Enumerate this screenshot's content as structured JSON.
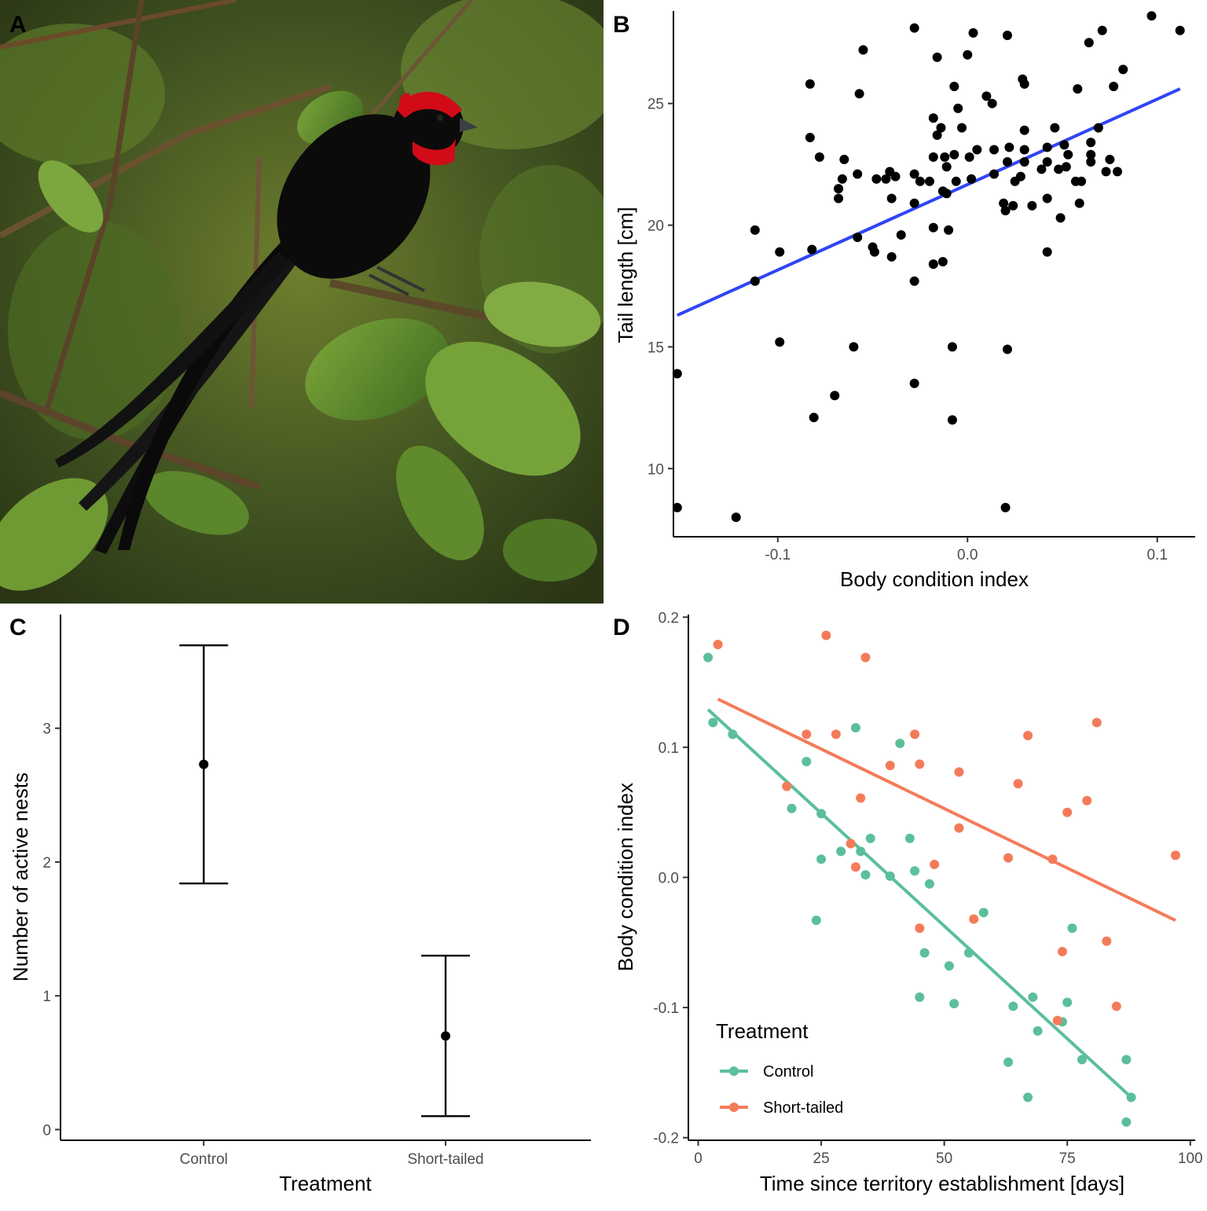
{
  "panel_labels": [
    "A",
    "B",
    "C",
    "D"
  ],
  "colors": {
    "fit_line_b": "#2e45f5",
    "control": "#5bbf9a",
    "short_tailed": "#f47b5a",
    "points": "#000000",
    "axis": "#000000"
  },
  "photo": {
    "icon": "bird-photo-icon",
    "bird_body": "#0b0b0b",
    "bird_mask": "#d10b18",
    "foliage": "#5d8a2c",
    "background": "#3e4a20"
  },
  "chart_data": [
    {
      "panel": "B",
      "type": "scatter",
      "xlabel": "Body condition index",
      "ylabel": "Tail length [cm]",
      "xlim": [
        -0.155,
        0.12
      ],
      "ylim": [
        7.2,
        28.8
      ],
      "xticks": [
        -0.1,
        0.0,
        0.1
      ],
      "xtick_labels": [
        "-0.1",
        "0.0",
        "0.1"
      ],
      "yticks": [
        10,
        15,
        20,
        25
      ],
      "ytick_labels": [
        "10",
        "15",
        "20",
        "25"
      ],
      "grid": false,
      "fit_line": {
        "x": [
          -0.153,
          0.112
        ],
        "y": [
          16.3,
          25.6
        ]
      },
      "points": [
        [
          -0.153,
          13.9
        ],
        [
          -0.153,
          8.4
        ],
        [
          -0.122,
          8.0
        ],
        [
          -0.112,
          19.8
        ],
        [
          -0.112,
          17.7
        ],
        [
          -0.099,
          18.9
        ],
        [
          -0.099,
          15.2
        ],
        [
          -0.083,
          25.8
        ],
        [
          -0.083,
          23.6
        ],
        [
          -0.082,
          19.0
        ],
        [
          -0.081,
          12.1
        ],
        [
          -0.078,
          22.8
        ],
        [
          -0.07,
          13.0
        ],
        [
          -0.068,
          21.5
        ],
        [
          -0.068,
          21.1
        ],
        [
          -0.066,
          21.9
        ],
        [
          -0.065,
          22.7
        ],
        [
          -0.06,
          15.0
        ],
        [
          -0.058,
          22.1
        ],
        [
          -0.058,
          19.5
        ],
        [
          -0.057,
          25.4
        ],
        [
          -0.055,
          27.2
        ],
        [
          -0.05,
          19.1
        ],
        [
          -0.049,
          18.9
        ],
        [
          -0.048,
          21.9
        ],
        [
          -0.043,
          21.9
        ],
        [
          -0.041,
          22.2
        ],
        [
          -0.04,
          18.7
        ],
        [
          -0.04,
          21.1
        ],
        [
          -0.038,
          22.0
        ],
        [
          -0.035,
          19.6
        ],
        [
          -0.028,
          28.1
        ],
        [
          -0.028,
          22.1
        ],
        [
          -0.028,
          20.9
        ],
        [
          -0.028,
          17.7
        ],
        [
          -0.028,
          13.5
        ],
        [
          -0.025,
          21.8
        ],
        [
          -0.02,
          21.8
        ],
        [
          -0.018,
          24.4
        ],
        [
          -0.018,
          22.8
        ],
        [
          -0.018,
          19.9
        ],
        [
          -0.018,
          18.4
        ],
        [
          -0.016,
          26.9
        ],
        [
          -0.016,
          23.7
        ],
        [
          -0.014,
          24.0
        ],
        [
          -0.013,
          21.4
        ],
        [
          -0.013,
          18.5
        ],
        [
          -0.012,
          22.8
        ],
        [
          -0.011,
          22.4
        ],
        [
          -0.011,
          21.3
        ],
        [
          -0.01,
          19.8
        ],
        [
          -0.008,
          15.0
        ],
        [
          -0.008,
          12.0
        ],
        [
          -0.007,
          25.7
        ],
        [
          -0.007,
          22.9
        ],
        [
          -0.006,
          21.8
        ],
        [
          -0.005,
          24.8
        ],
        [
          -0.003,
          24.0
        ],
        [
          0.0,
          27.0
        ],
        [
          0.001,
          22.8
        ],
        [
          0.002,
          21.9
        ],
        [
          0.003,
          27.9
        ],
        [
          0.005,
          23.1
        ],
        [
          0.01,
          25.3
        ],
        [
          0.013,
          25.0
        ],
        [
          0.014,
          23.1
        ],
        [
          0.014,
          22.1
        ],
        [
          0.019,
          20.9
        ],
        [
          0.02,
          20.6
        ],
        [
          0.02,
          8.4
        ],
        [
          0.021,
          27.8
        ],
        [
          0.021,
          22.6
        ],
        [
          0.021,
          14.9
        ],
        [
          0.022,
          23.2
        ],
        [
          0.024,
          20.8
        ],
        [
          0.025,
          21.8
        ],
        [
          0.028,
          22.0
        ],
        [
          0.029,
          26.0
        ],
        [
          0.03,
          25.8
        ],
        [
          0.03,
          23.9
        ],
        [
          0.03,
          23.1
        ],
        [
          0.03,
          22.6
        ],
        [
          0.034,
          20.8
        ],
        [
          0.039,
          22.3
        ],
        [
          0.042,
          23.2
        ],
        [
          0.042,
          22.6
        ],
        [
          0.042,
          21.1
        ],
        [
          0.042,
          18.9
        ],
        [
          0.046,
          24.0
        ],
        [
          0.048,
          22.3
        ],
        [
          0.049,
          20.3
        ],
        [
          0.051,
          23.3
        ],
        [
          0.052,
          22.4
        ],
        [
          0.053,
          22.9
        ],
        [
          0.057,
          21.8
        ],
        [
          0.058,
          25.6
        ],
        [
          0.059,
          20.9
        ],
        [
          0.06,
          21.8
        ],
        [
          0.064,
          27.5
        ],
        [
          0.065,
          23.4
        ],
        [
          0.065,
          22.9
        ],
        [
          0.065,
          22.6
        ],
        [
          0.069,
          24.0
        ],
        [
          0.071,
          28.0
        ],
        [
          0.073,
          22.2
        ],
        [
          0.075,
          22.7
        ],
        [
          0.077,
          25.7
        ],
        [
          0.079,
          22.2
        ],
        [
          0.082,
          26.4
        ],
        [
          0.097,
          28.6
        ],
        [
          0.112,
          28.0
        ]
      ]
    },
    {
      "panel": "C",
      "type": "errorbar",
      "xlabel": "Treatment",
      "ylabel": "Number of active nests",
      "categories": [
        "Control",
        "Short-tailed"
      ],
      "ylim": [
        -0.08,
        3.85
      ],
      "yticks": [
        0,
        1,
        2,
        3
      ],
      "ytick_labels": [
        "0",
        "1",
        "2",
        "3"
      ],
      "grid": false,
      "means": [
        2.73,
        0.7
      ],
      "lower": [
        1.84,
        0.1
      ],
      "upper": [
        3.62,
        1.3
      ]
    },
    {
      "panel": "D",
      "type": "scatter",
      "xlabel": "Time since territory establishment [days]",
      "ylabel": "Body condition index",
      "xlim": [
        -2,
        101
      ],
      "ylim": [
        -0.202,
        0.202
      ],
      "xticks": [
        0,
        25,
        50,
        75,
        100
      ],
      "xtick_labels": [
        "0",
        "25",
        "50",
        "75",
        "100"
      ],
      "yticks": [
        -0.2,
        -0.1,
        0.0,
        0.1,
        0.2
      ],
      "ytick_labels": [
        "-0.2",
        "-0.1",
        "0.0",
        "0.1",
        "0.2"
      ],
      "grid": false,
      "legend": {
        "title": "Treatment",
        "position": "bottom-left"
      },
      "series": [
        {
          "name": "Control",
          "fit_line": {
            "x": [
              2,
              88
            ],
            "y": [
              0.129,
              -0.169
            ]
          },
          "points": [
            [
              2,
              0.169
            ],
            [
              3,
              0.119
            ],
            [
              7,
              0.11
            ],
            [
              19,
              0.053
            ],
            [
              22,
              0.089
            ],
            [
              24,
              -0.033
            ],
            [
              25,
              0.049
            ],
            [
              25,
              0.014
            ],
            [
              29,
              0.02
            ],
            [
              32,
              0.115
            ],
            [
              33,
              0.02
            ],
            [
              34,
              0.002
            ],
            [
              35,
              0.03
            ],
            [
              39,
              0.001
            ],
            [
              41,
              0.103
            ],
            [
              43,
              0.03
            ],
            [
              44,
              0.005
            ],
            [
              45,
              -0.092
            ],
            [
              46,
              -0.058
            ],
            [
              47,
              -0.005
            ],
            [
              51,
              -0.068
            ],
            [
              52,
              -0.097
            ],
            [
              55,
              -0.058
            ],
            [
              58,
              -0.027
            ],
            [
              63,
              -0.142
            ],
            [
              64,
              -0.099
            ],
            [
              67,
              -0.169
            ],
            [
              68,
              -0.092
            ],
            [
              69,
              -0.118
            ],
            [
              74,
              -0.111
            ],
            [
              75,
              -0.096
            ],
            [
              76,
              -0.039
            ],
            [
              78,
              -0.14
            ],
            [
              87,
              -0.14
            ],
            [
              87,
              -0.188
            ],
            [
              88,
              -0.169
            ]
          ]
        },
        {
          "name": "Short-tailed",
          "fit_line": {
            "x": [
              4,
              97
            ],
            "y": [
              0.137,
              -0.033
            ]
          },
          "points": [
            [
              4,
              0.179
            ],
            [
              18,
              0.07
            ],
            [
              22,
              0.11
            ],
            [
              26,
              0.186
            ],
            [
              28,
              0.11
            ],
            [
              31,
              0.026
            ],
            [
              32,
              0.008
            ],
            [
              33,
              0.061
            ],
            [
              34,
              0.169
            ],
            [
              39,
              0.086
            ],
            [
              44,
              0.11
            ],
            [
              45,
              0.087
            ],
            [
              45,
              -0.039
            ],
            [
              48,
              0.01
            ],
            [
              53,
              0.081
            ],
            [
              53,
              0.038
            ],
            [
              56,
              -0.032
            ],
            [
              63,
              0.015
            ],
            [
              65,
              0.072
            ],
            [
              67,
              0.109
            ],
            [
              72,
              0.014
            ],
            [
              73,
              -0.11
            ],
            [
              74,
              -0.057
            ],
            [
              75,
              0.05
            ],
            [
              79,
              0.059
            ],
            [
              81,
              0.119
            ],
            [
              83,
              -0.049
            ],
            [
              85,
              -0.099
            ],
            [
              97,
              0.017
            ]
          ]
        }
      ]
    }
  ]
}
